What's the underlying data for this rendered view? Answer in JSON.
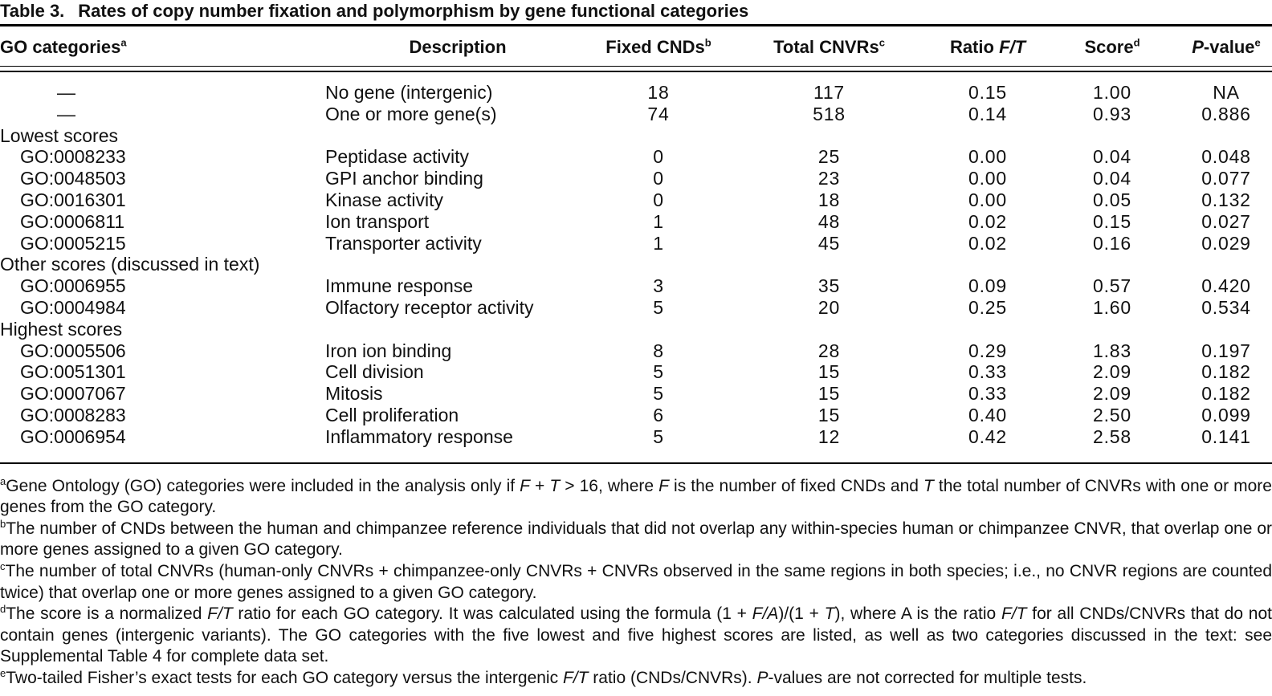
{
  "title": {
    "label": "Table 3.",
    "text": "Rates of copy number fixation and polymorphism by gene functional categories"
  },
  "table": {
    "columns": [
      {
        "name": "go-categories",
        "segments": [
          {
            "t": "GO categories"
          },
          {
            "s": "a"
          }
        ]
      },
      {
        "name": "description",
        "segments": [
          {
            "t": "Description"
          }
        ]
      },
      {
        "name": "fixed-cnds",
        "segments": [
          {
            "t": "Fixed CNDs"
          },
          {
            "s": "b"
          }
        ]
      },
      {
        "name": "total-cnvrs",
        "segments": [
          {
            "t": "Total CNVRs"
          },
          {
            "s": "c"
          }
        ]
      },
      {
        "name": "ratio-ft",
        "segments": [
          {
            "t": "Ratio "
          },
          {
            "i": "F/T"
          }
        ]
      },
      {
        "name": "score",
        "segments": [
          {
            "t": "Score"
          },
          {
            "s": "d"
          }
        ]
      },
      {
        "name": "p-value",
        "segments": [
          {
            "i": "P"
          },
          {
            "t": "-value"
          },
          {
            "s": "e"
          }
        ]
      }
    ],
    "rows": [
      {
        "kind": "data",
        "go": "—",
        "go_class": "dash",
        "desc": "No gene (intergenic)",
        "fixed": "18",
        "total": "117",
        "ratio": "0.15",
        "score": "1.00",
        "p": "NA"
      },
      {
        "kind": "data",
        "go": "—",
        "go_class": "dash",
        "desc": "One or more gene(s)",
        "fixed": "74",
        "total": "518",
        "ratio": "0.14",
        "score": "0.93",
        "p": "0.886"
      },
      {
        "kind": "section",
        "label": "Lowest scores"
      },
      {
        "kind": "data",
        "go": "GO:0008233",
        "go_class": "indent",
        "desc": "Peptidase activity",
        "fixed": "0",
        "total": "25",
        "ratio": "0.00",
        "score": "0.04",
        "p": "0.048"
      },
      {
        "kind": "data",
        "go": "GO:0048503",
        "go_class": "indent",
        "desc": "GPI anchor binding",
        "fixed": "0",
        "total": "23",
        "ratio": "0.00",
        "score": "0.04",
        "p": "0.077"
      },
      {
        "kind": "data",
        "go": "GO:0016301",
        "go_class": "indent",
        "desc": "Kinase activity",
        "fixed": "0",
        "total": "18",
        "ratio": "0.00",
        "score": "0.05",
        "p": "0.132"
      },
      {
        "kind": "data",
        "go": "GO:0006811",
        "go_class": "indent",
        "desc": "Ion transport",
        "fixed": "1",
        "total": "48",
        "ratio": "0.02",
        "score": "0.15",
        "p": "0.027"
      },
      {
        "kind": "data",
        "go": "GO:0005215",
        "go_class": "indent",
        "desc": "Transporter activity",
        "fixed": "1",
        "total": "45",
        "ratio": "0.02",
        "score": "0.16",
        "p": "0.029"
      },
      {
        "kind": "section",
        "label": "Other scores (discussed in text)"
      },
      {
        "kind": "data",
        "go": "GO:0006955",
        "go_class": "indent",
        "desc": "Immune response",
        "fixed": "3",
        "total": "35",
        "ratio": "0.09",
        "score": "0.57",
        "p": "0.420"
      },
      {
        "kind": "data",
        "go": "GO:0004984",
        "go_class": "indent",
        "desc": "Olfactory receptor activity",
        "fixed": "5",
        "total": "20",
        "ratio": "0.25",
        "score": "1.60",
        "p": "0.534"
      },
      {
        "kind": "section",
        "label": "Highest scores"
      },
      {
        "kind": "data",
        "go": "GO:0005506",
        "go_class": "indent",
        "desc": "Iron ion binding",
        "fixed": "8",
        "total": "28",
        "ratio": "0.29",
        "score": "1.83",
        "p": "0.197"
      },
      {
        "kind": "data",
        "go": "GO:0051301",
        "go_class": "indent",
        "desc": "Cell division",
        "fixed": "5",
        "total": "15",
        "ratio": "0.33",
        "score": "2.09",
        "p": "0.182"
      },
      {
        "kind": "data",
        "go": "GO:0007067",
        "go_class": "indent",
        "desc": "Mitosis",
        "fixed": "5",
        "total": "15",
        "ratio": "0.33",
        "score": "2.09",
        "p": "0.182"
      },
      {
        "kind": "data",
        "go": "GO:0008283",
        "go_class": "indent",
        "desc": "Cell proliferation",
        "fixed": "6",
        "total": "15",
        "ratio": "0.40",
        "score": "2.50",
        "p": "0.099"
      },
      {
        "kind": "data",
        "go": "GO:0006954",
        "go_class": "indent",
        "desc": "Inflammatory response",
        "fixed": "5",
        "total": "12",
        "ratio": "0.42",
        "score": "2.58",
        "p": "0.141"
      }
    ]
  },
  "footnotes": [
    {
      "id": "a",
      "segments": [
        {
          "s": "a"
        },
        {
          "t": "Gene Ontology (GO) categories were included in the analysis only if "
        },
        {
          "i": "F"
        },
        {
          "t": " + "
        },
        {
          "i": "T"
        },
        {
          "t": " > 16, where "
        },
        {
          "i": "F"
        },
        {
          "t": " is the number of fixed CNDs and "
        },
        {
          "i": "T"
        },
        {
          "t": " the total number of CNVRs with one or more genes from the GO category."
        }
      ]
    },
    {
      "id": "b",
      "segments": [
        {
          "s": "b"
        },
        {
          "t": "The number of CNDs between the human and chimpanzee reference individuals that did not overlap any within-species human or chimpanzee CNVR, that overlap one or more genes assigned to a given GO category."
        }
      ]
    },
    {
      "id": "c",
      "segments": [
        {
          "s": "c"
        },
        {
          "t": "The number of total CNVRs (human-only CNVRs + chimpanzee-only CNVRs + CNVRs observed in the same regions in both species; i.e., no CNVR regions are counted twice) that overlap one or more genes assigned to a given GO category."
        }
      ]
    },
    {
      "id": "d",
      "segments": [
        {
          "s": "d"
        },
        {
          "t": "The score is a normalized "
        },
        {
          "i": "F/T"
        },
        {
          "t": " ratio for each GO category. It was calculated using the formula (1 + "
        },
        {
          "i": "F/A"
        },
        {
          "t": ")/(1 + "
        },
        {
          "i": "T"
        },
        {
          "t": "), where A is the ratio "
        },
        {
          "i": "F/T"
        },
        {
          "t": " for all CNDs/CNVRs that do not contain genes (intergenic variants). The GO categories with the five lowest and five highest scores are listed, as well as two categories discussed in the text: see Supplemental Table 4 for complete data set."
        }
      ]
    },
    {
      "id": "e",
      "segments": [
        {
          "s": "e"
        },
        {
          "t": "Two-tailed Fisher’s exact tests for each GO category versus the intergenic "
        },
        {
          "i": "F/T"
        },
        {
          "t": " ratio (CNDs/CNVRs). "
        },
        {
          "i": "P"
        },
        {
          "t": "-values are not corrected for multiple tests."
        }
      ]
    }
  ]
}
